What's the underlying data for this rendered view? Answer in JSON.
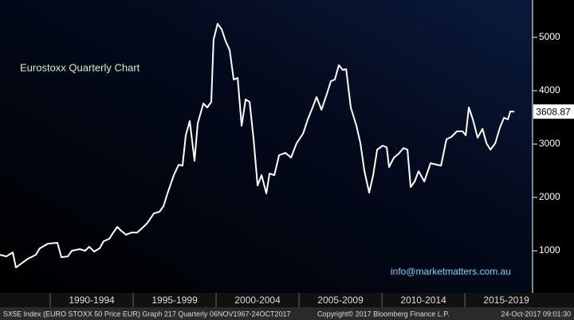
{
  "chart_data": {
    "type": "line",
    "title": "Eurostoxx Quarterly Chart",
    "annotation": "info@marketmatters.com.au",
    "footer": [
      "SX5E Index (EURO STOXX 50 Price EUR) Graph 217  Quarterly 06NOV1967-24OCT2017",
      "Copyright© 2017 Bloomberg Finance L.P.",
      "24-Oct-2017 09:01:30"
    ],
    "color": "#ffffff",
    "x": [
      1986.97,
      1987.35,
      1987.74,
      1987.93,
      1988.32,
      1988.65,
      1989.13,
      1989.37,
      1989.86,
      1990.43,
      1990.67,
      1991.06,
      1991.3,
      1991.78,
      1992.11,
      1992.35,
      1992.64,
      1992.98,
      1993.22,
      1993.56,
      1993.84,
      1994.04,
      1994.28,
      1994.57,
      1994.9,
      1995.24,
      1995.62,
      1995.86,
      1996.25,
      1996.59,
      1996.83,
      1997.07,
      1997.45,
      1997.74,
      1997.98,
      1998.17,
      1998.41,
      1998.7,
      1998.89,
      1999.23,
      1999.47,
      1999.71,
      1999.85,
      2000.09,
      2000.34,
      2000.58,
      2000.82,
      2001.06,
      2001.3,
      2001.54,
      2001.78,
      2002.02,
      2002.26,
      2002.5,
      2002.74,
      2003.03,
      2003.22,
      2003.51,
      2003.8,
      2004.18,
      2004.52,
      2004.85,
      2005.24,
      2005.53,
      2005.82,
      2006.06,
      2006.35,
      2006.68,
      2006.92,
      2007.16,
      2007.4,
      2007.64,
      2007.84,
      2008.12,
      2008.46,
      2008.7,
      2008.94,
      2009.23,
      2009.47,
      2009.71,
      2010.05,
      2010.29,
      2010.43,
      2010.72,
      2011.01,
      2011.3,
      2011.54,
      2011.73,
      2011.97,
      2012.21,
      2012.55,
      2012.93,
      2013.32,
      2013.56,
      2013.89,
      2014.18,
      2014.52,
      2014.86,
      2015.05,
      2015.24,
      2015.48,
      2015.77,
      2016.06,
      2016.3,
      2016.54,
      2016.83,
      2017.12,
      2017.36,
      2017.6,
      2017.74,
      2017.98
    ],
    "values": [
      925,
      895,
      970,
      687,
      776,
      850,
      925,
      1045,
      1134,
      1150,
      880,
      895,
      1000,
      1030,
      1000,
      1075,
      985,
      1045,
      1180,
      1224,
      1358,
      1448,
      1373,
      1300,
      1343,
      1343,
      1448,
      1522,
      1701,
      1731,
      1836,
      2075,
      2418,
      2612,
      2597,
      3164,
      3433,
      2687,
      3388,
      3761,
      3686,
      3791,
      4955,
      5254,
      5149,
      4925,
      4761,
      4209,
      4239,
      3343,
      3836,
      3791,
      3090,
      2224,
      2418,
      2075,
      2448,
      2418,
      2791,
      2836,
      2746,
      3015,
      3194,
      3463,
      3686,
      3881,
      3642,
      3940,
      4179,
      4209,
      4478,
      4388,
      4403,
      3686,
      3343,
      3015,
      2493,
      2090,
      2418,
      2896,
      2970,
      2940,
      2567,
      2746,
      2821,
      2925,
      2896,
      2194,
      2299,
      2493,
      2299,
      2642,
      2612,
      2597,
      3090,
      3134,
      3239,
      3239,
      3164,
      3686,
      3463,
      3119,
      3284,
      3015,
      2896,
      3015,
      3313,
      3493,
      3463,
      3612,
      3608.87
    ],
    "xlim": [
      1986.97,
      2019.08
    ],
    "xticks": [
      {
        "value": 1990,
        "label": "1990-1994"
      },
      {
        "value": 1995,
        "label": "1995-1999"
      },
      {
        "value": 2000,
        "label": "2000-2004"
      },
      {
        "value": 2005,
        "label": "2005-2009"
      },
      {
        "value": 2010,
        "label": "2010-2014"
      },
      {
        "value": 2015,
        "label": "2015-2019"
      }
    ],
    "ylim": [
      210,
      5700
    ],
    "yticks": [
      1000,
      2000,
      3000,
      4000,
      5000
    ]
  }
}
